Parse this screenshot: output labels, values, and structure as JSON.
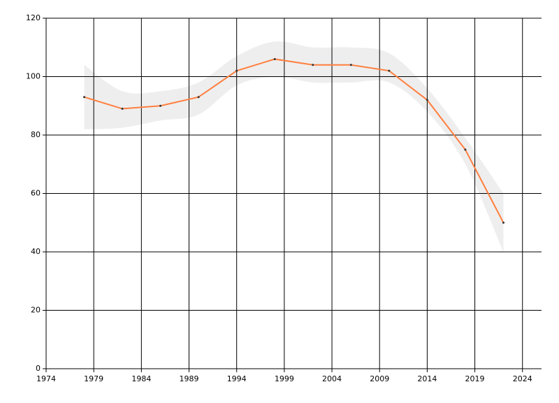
{
  "chart_data": {
    "type": "line",
    "x": [
      1978,
      1982,
      1986,
      1990,
      1994,
      1998,
      2002,
      2006,
      2010,
      2014,
      2018,
      2022
    ],
    "values": [
      93,
      89,
      90,
      93,
      102,
      106,
      104,
      104,
      102,
      92,
      75,
      50
    ],
    "color": "#ff7f3f",
    "band": {
      "color": "#eeeeee",
      "lower": [
        82,
        82.5,
        85,
        87,
        97,
        100,
        98,
        98,
        98,
        88,
        70,
        40
      ],
      "upper": [
        104,
        95,
        95,
        98,
        107,
        112,
        110,
        110,
        108,
        96,
        79,
        60
      ]
    },
    "xlim": [
      1974,
      2026
    ],
    "xticks": [
      1974,
      1979,
      1984,
      1989,
      1994,
      1999,
      2004,
      2009,
      2014,
      2019,
      2024
    ],
    "ylim": [
      0,
      120
    ],
    "yticks": [
      0,
      20,
      40,
      60,
      80,
      100,
      120
    ],
    "grid": true
  }
}
